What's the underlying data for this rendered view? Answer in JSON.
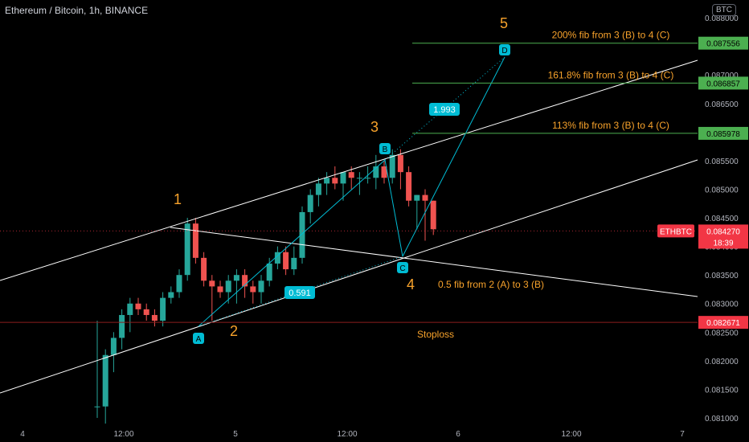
{
  "header": {
    "symbol_title": "Ethereum / Bitcoin, 1h, BINANCE",
    "currency_badge": "BTC"
  },
  "colors": {
    "background": "#000000",
    "up": "#26a69a",
    "down": "#ef5350",
    "wave_label": "#f7a22b",
    "fib_line": "#4caf50",
    "fib_label_bg": "#4caf50",
    "pattern_marker": "#00bcd4",
    "stoploss_line": "#8b1e1e",
    "price_label_bg": "#f23645",
    "channel_line": "#ffffff",
    "text": "#d1d4dc"
  },
  "chart_data": {
    "type": "candlestick",
    "price_axis": {
      "ticks": [
        "0.088000",
        "0.087500",
        "0.087000",
        "0.086500",
        "0.086000",
        "0.085500",
        "0.085000",
        "0.084500",
        "0.084000",
        "0.083500",
        "0.083000",
        "0.082500",
        "0.082000",
        "0.081500",
        "0.081000"
      ],
      "ylim": [
        0.08095,
        0.08893
      ]
    },
    "time_axis": {
      "ticks": [
        "4",
        "12:00",
        "5",
        "12:00",
        "6",
        "12:00",
        "7"
      ]
    },
    "candles": [
      {
        "o": 0.0812,
        "h": 0.0827,
        "l": 0.081,
        "c": 0.0812
      },
      {
        "o": 0.0812,
        "h": 0.0822,
        "l": 0.0809,
        "c": 0.0821
      },
      {
        "o": 0.0821,
        "h": 0.0825,
        "l": 0.0818,
        "c": 0.0824
      },
      {
        "o": 0.0824,
        "h": 0.0829,
        "l": 0.0822,
        "c": 0.0828
      },
      {
        "o": 0.0828,
        "h": 0.0831,
        "l": 0.0825,
        "c": 0.083
      },
      {
        "o": 0.083,
        "h": 0.0831,
        "l": 0.0828,
        "c": 0.0829
      },
      {
        "o": 0.0829,
        "h": 0.083,
        "l": 0.0827,
        "c": 0.0828
      },
      {
        "o": 0.0828,
        "h": 0.0829,
        "l": 0.0826,
        "c": 0.0827
      },
      {
        "o": 0.0827,
        "h": 0.0832,
        "l": 0.0826,
        "c": 0.0831
      },
      {
        "o": 0.0831,
        "h": 0.0833,
        "l": 0.083,
        "c": 0.0832
      },
      {
        "o": 0.0832,
        "h": 0.0836,
        "l": 0.0831,
        "c": 0.0835
      },
      {
        "o": 0.0835,
        "h": 0.0845,
        "l": 0.0834,
        "c": 0.0844
      },
      {
        "o": 0.0844,
        "h": 0.0845,
        "l": 0.0837,
        "c": 0.0838
      },
      {
        "o": 0.0838,
        "h": 0.0839,
        "l": 0.0833,
        "c": 0.0834
      },
      {
        "o": 0.0834,
        "h": 0.0835,
        "l": 0.0827,
        "c": 0.0833
      },
      {
        "o": 0.0833,
        "h": 0.0834,
        "l": 0.0831,
        "c": 0.0832
      },
      {
        "o": 0.0832,
        "h": 0.0835,
        "l": 0.083,
        "c": 0.0834
      },
      {
        "o": 0.0834,
        "h": 0.0836,
        "l": 0.083,
        "c": 0.0835
      },
      {
        "o": 0.0835,
        "h": 0.0836,
        "l": 0.0831,
        "c": 0.0833
      },
      {
        "o": 0.0833,
        "h": 0.0834,
        "l": 0.083,
        "c": 0.0832
      },
      {
        "o": 0.0832,
        "h": 0.0835,
        "l": 0.083,
        "c": 0.0834
      },
      {
        "o": 0.0834,
        "h": 0.0838,
        "l": 0.0833,
        "c": 0.0837
      },
      {
        "o": 0.0837,
        "h": 0.084,
        "l": 0.0836,
        "c": 0.0839
      },
      {
        "o": 0.0839,
        "h": 0.084,
        "l": 0.0835,
        "c": 0.0836
      },
      {
        "o": 0.0836,
        "h": 0.084,
        "l": 0.0835,
        "c": 0.0838
      },
      {
        "o": 0.0838,
        "h": 0.0847,
        "l": 0.0837,
        "c": 0.0846
      },
      {
        "o": 0.0846,
        "h": 0.085,
        "l": 0.0844,
        "c": 0.0849
      },
      {
        "o": 0.0849,
        "h": 0.0852,
        "l": 0.0847,
        "c": 0.0851
      },
      {
        "o": 0.0851,
        "h": 0.0853,
        "l": 0.0849,
        "c": 0.0852
      },
      {
        "o": 0.0852,
        "h": 0.0854,
        "l": 0.085,
        "c": 0.0851
      },
      {
        "o": 0.0851,
        "h": 0.0853,
        "l": 0.0848,
        "c": 0.0853
      },
      {
        "o": 0.0853,
        "h": 0.0854,
        "l": 0.085,
        "c": 0.0852
      },
      {
        "o": 0.0852,
        "h": 0.0853,
        "l": 0.0849,
        "c": 0.0852
      },
      {
        "o": 0.0852,
        "h": 0.0854,
        "l": 0.0851,
        "c": 0.0852
      },
      {
        "o": 0.0852,
        "h": 0.0856,
        "l": 0.085,
        "c": 0.0854
      },
      {
        "o": 0.0854,
        "h": 0.0855,
        "l": 0.0851,
        "c": 0.0852
      },
      {
        "o": 0.0852,
        "h": 0.0857,
        "l": 0.0851,
        "c": 0.0856
      },
      {
        "o": 0.0856,
        "h": 0.0857,
        "l": 0.085,
        "c": 0.0853
      },
      {
        "o": 0.0853,
        "h": 0.0854,
        "l": 0.0847,
        "c": 0.0848
      },
      {
        "o": 0.0848,
        "h": 0.0849,
        "l": 0.0843,
        "c": 0.0849
      },
      {
        "o": 0.0849,
        "h": 0.085,
        "l": 0.0841,
        "c": 0.0848
      },
      {
        "o": 0.0848,
        "h": 0.0848,
        "l": 0.0842,
        "c": 0.0843
      }
    ],
    "current_price": {
      "symbol": "ETHBTC",
      "price": "0.084270",
      "countdown": "18:39",
      "value": 0.08427
    },
    "fib_levels": [
      {
        "label": "200% fib from 3 (B) to 4 (C)",
        "price_label": "0.087556",
        "value": 0.087556
      },
      {
        "label": "161.8% fib from 3 (B) to 4 (C)",
        "price_label": "0.086857",
        "value": 0.086857
      },
      {
        "label": "113% fib from 3 (B) to 4 (C)",
        "price_label": "0.085978",
        "value": 0.085978
      }
    ],
    "stoploss": {
      "label": "Stoploss",
      "price_label": "0.082671",
      "value": 0.082671
    },
    "retracement_note": "0.5 fib from 2 (A) to 3 (B)",
    "wave_labels": [
      "1",
      "2",
      "3",
      "4",
      "5"
    ],
    "pattern_points": [
      "A",
      "B",
      "C",
      "D"
    ],
    "ratios": [
      "0.591",
      "1.993"
    ]
  }
}
